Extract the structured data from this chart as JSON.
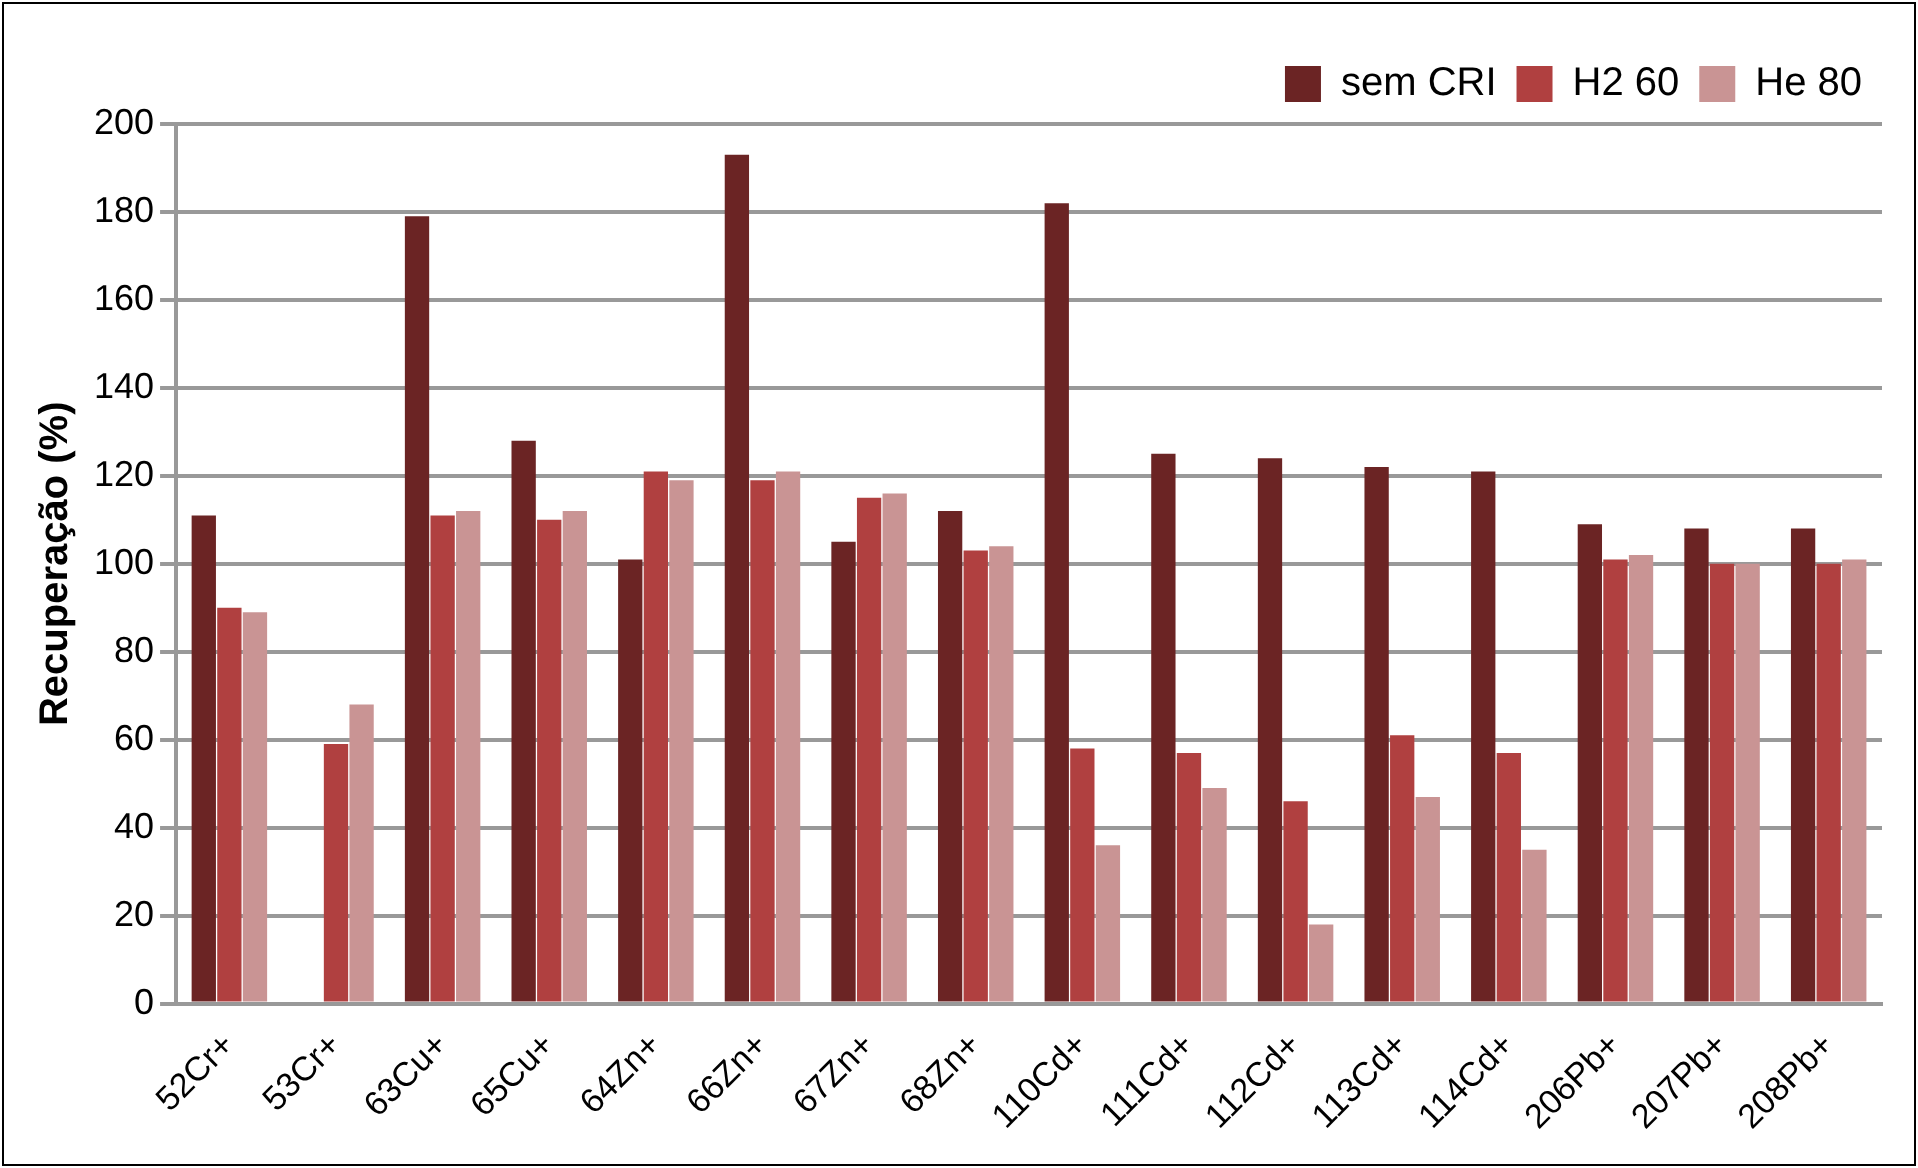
{
  "chart_data": {
    "type": "bar",
    "ylabel": "Recuperação (%)",
    "categories": [
      "52Cr+",
      "53Cr+",
      "63Cu+",
      "65Cu+",
      "64Zn+",
      "66Zn+",
      "67Zn+",
      "68Zn+",
      "110Cd+",
      "111Cd+",
      "112Cd+",
      "113Cd+",
      "114Cd+",
      "206Pb+",
      "207Pb+",
      "208Pb+"
    ],
    "series": [
      {
        "name": "sem CRI",
        "color": "#6b2424",
        "values": [
          111,
          null,
          179,
          128,
          101,
          193,
          105,
          112,
          182,
          125,
          124,
          122,
          121,
          109,
          108,
          108
        ]
      },
      {
        "name": "H2 60",
        "color": "#b04040",
        "values": [
          90,
          59,
          111,
          110,
          121,
          119,
          115,
          103,
          58,
          57,
          46,
          61,
          57,
          101,
          100,
          100
        ]
      },
      {
        "name": "He 80",
        "color": "#c99494",
        "values": [
          89,
          68,
          112,
          112,
          119,
          121,
          116,
          104,
          36,
          49,
          18,
          47,
          35,
          102,
          100,
          101
        ]
      }
    ],
    "ylim": [
      0,
      200
    ],
    "yticks": [
      0,
      20,
      40,
      60,
      80,
      100,
      120,
      140,
      160,
      180,
      200
    ],
    "grid": "y",
    "legend": "top right"
  }
}
